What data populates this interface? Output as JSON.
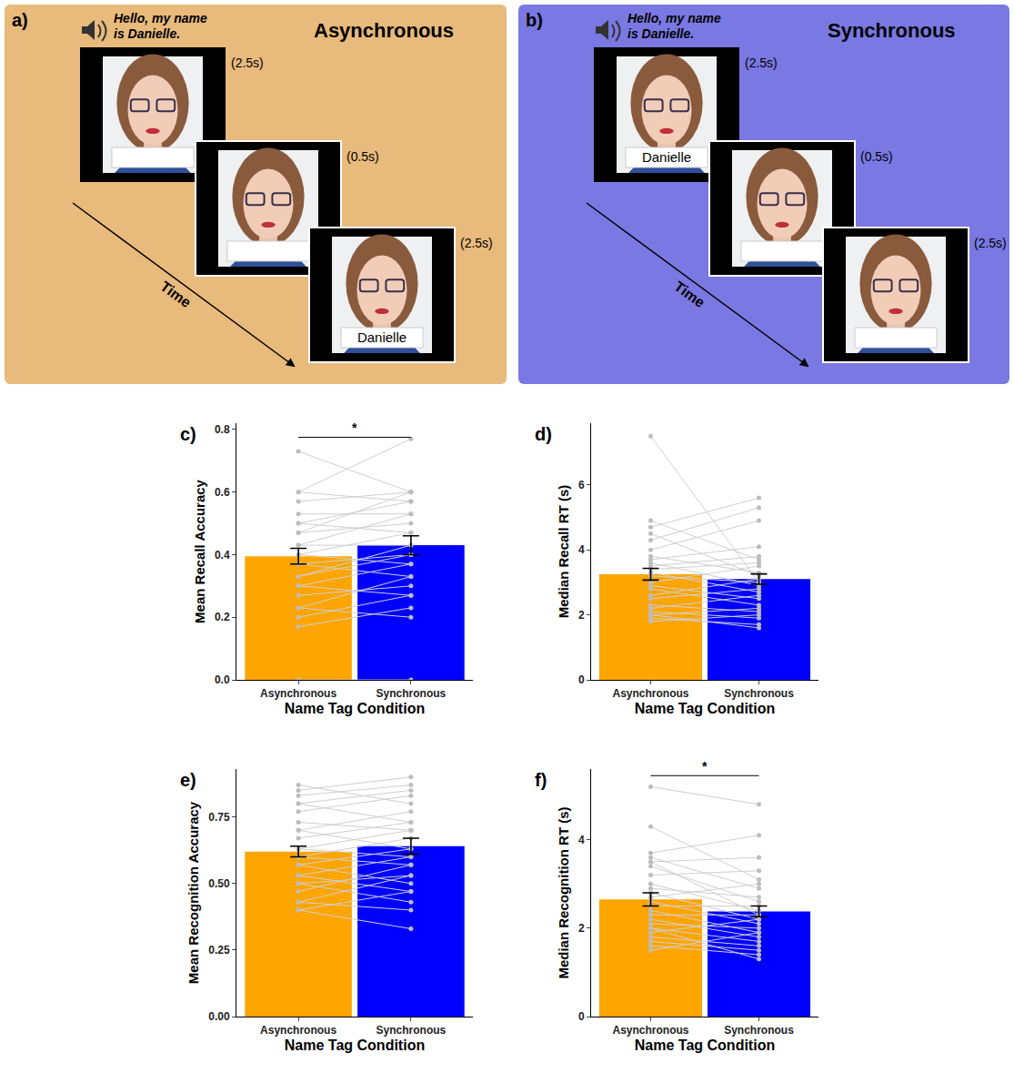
{
  "diagrams": [
    {
      "panel": "a)",
      "title": "Asynchronous",
      "color": "#E8BA7C",
      "speech": "Hello, my name is Danielle.",
      "arrow_label": "Time",
      "frames": [
        {
          "duration": "(2.5s)",
          "name_tag": null
        },
        {
          "duration": "(0.5s)",
          "name_tag": null
        },
        {
          "duration": "(2.5s)",
          "name_tag": "Danielle"
        }
      ]
    },
    {
      "panel": "b)",
      "title": "Synchronous",
      "color": "#7A78E2",
      "speech": "Hello, my name is Danielle.",
      "arrow_label": "Time",
      "frames": [
        {
          "duration": "(2.5s)",
          "name_tag": "Danielle"
        },
        {
          "duration": "(0.5s)",
          "name_tag": null
        },
        {
          "duration": "(2.5s)",
          "name_tag": null
        }
      ]
    }
  ],
  "chart_data": [
    {
      "type": "bar",
      "panel": "c)",
      "categories": [
        "Asynchronous",
        "Synchronous"
      ],
      "colors": [
        "#FFA500",
        "#0000FF"
      ],
      "values": [
        0.395,
        0.43
      ],
      "error": [
        0.025,
        0.03
      ],
      "xlabel": "Name Tag Condition",
      "ylabel": "Mean Recall Accuracy",
      "ylim": [
        0,
        0.82
      ],
      "yticks": [
        {
          "value": 0,
          "label": "0.0"
        },
        {
          "value": 0.2,
          "label": "0.2"
        },
        {
          "value": 0.4,
          "label": "0.4"
        },
        {
          "value": 0.6,
          "label": "0.6"
        },
        {
          "value": 0.8,
          "label": "0.8"
        }
      ],
      "significance": {
        "label": "*",
        "y": 0.775
      },
      "paired": [
        [
          0.73,
          0.6
        ],
        [
          0.6,
          0.77
        ],
        [
          0.6,
          0.57
        ],
        [
          0.57,
          0.6
        ],
        [
          0.53,
          0.53
        ],
        [
          0.5,
          0.57
        ],
        [
          0.5,
          0.47
        ],
        [
          0.47,
          0.6
        ],
        [
          0.47,
          0.5
        ],
        [
          0.43,
          0.43
        ],
        [
          0.43,
          0.53
        ],
        [
          0.4,
          0.37
        ],
        [
          0.4,
          0.47
        ],
        [
          0.37,
          0.4
        ],
        [
          0.37,
          0.33
        ],
        [
          0.33,
          0.43
        ],
        [
          0.33,
          0.4
        ],
        [
          0.3,
          0.37
        ],
        [
          0.3,
          0.27
        ],
        [
          0.27,
          0.3
        ],
        [
          0.23,
          0.33
        ],
        [
          0.23,
          0.2
        ],
        [
          0.2,
          0.27
        ],
        [
          0.17,
          0.23
        ],
        [
          0.0,
          0.0
        ]
      ]
    },
    {
      "type": "bar",
      "panel": "d)",
      "categories": [
        "Asynchronous",
        "Synchronous"
      ],
      "colors": [
        "#FFA500",
        "#0000FF"
      ],
      "values": [
        3.25,
        3.1
      ],
      "error": [
        0.18,
        0.16
      ],
      "xlabel": "Name Tag Condition",
      "ylabel": "Median Recall RT (s)",
      "ylim": [
        0,
        7.9
      ],
      "yticks": [
        0,
        2,
        4,
        6
      ],
      "paired": [
        [
          7.5,
          3.0
        ],
        [
          4.9,
          3.7
        ],
        [
          4.7,
          5.6
        ],
        [
          4.5,
          3.2
        ],
        [
          4.3,
          5.3
        ],
        [
          4.0,
          4.9
        ],
        [
          3.8,
          3.3
        ],
        [
          3.7,
          4.1
        ],
        [
          3.6,
          2.9
        ],
        [
          3.5,
          3.8
        ],
        [
          3.4,
          3.6
        ],
        [
          3.3,
          2.7
        ],
        [
          3.2,
          3.0
        ],
        [
          3.0,
          3.5
        ],
        [
          2.9,
          2.5
        ],
        [
          2.8,
          2.3
        ],
        [
          2.6,
          3.1
        ],
        [
          2.5,
          2.8
        ],
        [
          2.3,
          2.1
        ],
        [
          2.2,
          2.6
        ],
        [
          2.1,
          1.9
        ],
        [
          2.0,
          2.2
        ],
        [
          1.9,
          1.7
        ],
        [
          1.8,
          2.0
        ],
        [
          2.0,
          1.6
        ]
      ]
    },
    {
      "type": "bar",
      "panel": "e)",
      "categories": [
        "Asynchronous",
        "Synchronous"
      ],
      "colors": [
        "#FFA500",
        "#0000FF"
      ],
      "values": [
        0.62,
        0.64
      ],
      "error": [
        0.02,
        0.03
      ],
      "xlabel": "Name Tag Condition",
      "ylabel": "Mean Recognition Accuracy",
      "ylim": [
        0,
        0.93
      ],
      "yticks": [
        {
          "value": 0,
          "label": "0.00"
        },
        {
          "value": 0.25,
          "label": "0.25"
        },
        {
          "value": 0.5,
          "label": "0.50"
        },
        {
          "value": 0.75,
          "label": "0.75"
        }
      ],
      "paired": [
        [
          0.87,
          0.8
        ],
        [
          0.85,
          0.9
        ],
        [
          0.83,
          0.87
        ],
        [
          0.8,
          0.85
        ],
        [
          0.8,
          0.73
        ],
        [
          0.77,
          0.83
        ],
        [
          0.73,
          0.7
        ],
        [
          0.7,
          0.77
        ],
        [
          0.7,
          0.63
        ],
        [
          0.67,
          0.73
        ],
        [
          0.63,
          0.6
        ],
        [
          0.63,
          0.7
        ],
        [
          0.6,
          0.57
        ],
        [
          0.6,
          0.67
        ],
        [
          0.57,
          0.63
        ],
        [
          0.57,
          0.5
        ],
        [
          0.53,
          0.6
        ],
        [
          0.53,
          0.47
        ],
        [
          0.5,
          0.53
        ],
        [
          0.5,
          0.43
        ],
        [
          0.47,
          0.57
        ],
        [
          0.43,
          0.4
        ],
        [
          0.43,
          0.53
        ],
        [
          0.4,
          0.33
        ],
        [
          0.4,
          0.47
        ]
      ]
    },
    {
      "type": "bar",
      "panel": "f)",
      "categories": [
        "Asynchronous",
        "Synchronous"
      ],
      "colors": [
        "#FFA500",
        "#0000FF"
      ],
      "values": [
        2.65,
        2.38
      ],
      "error": [
        0.15,
        0.12
      ],
      "xlabel": "Name Tag Condition",
      "ylabel": "Median Recognition RT (s)",
      "ylim": [
        0,
        5.6
      ],
      "yticks": [
        0,
        2,
        4
      ],
      "significance": {
        "label": "*",
        "y": 5.45
      },
      "paired": [
        [
          5.2,
          4.8
        ],
        [
          4.3,
          3.1
        ],
        [
          3.7,
          4.1
        ],
        [
          3.6,
          2.9
        ],
        [
          3.5,
          3.6
        ],
        [
          3.4,
          2.6
        ],
        [
          3.2,
          3.3
        ],
        [
          3.0,
          2.4
        ],
        [
          2.9,
          2.7
        ],
        [
          2.8,
          2.2
        ],
        [
          2.7,
          3.0
        ],
        [
          2.6,
          2.1
        ],
        [
          2.5,
          2.5
        ],
        [
          2.4,
          1.9
        ],
        [
          2.3,
          2.3
        ],
        [
          2.2,
          1.8
        ],
        [
          2.1,
          2.0
        ],
        [
          2.0,
          1.7
        ],
        [
          1.9,
          2.2
        ],
        [
          1.8,
          1.6
        ],
        [
          1.7,
          1.5
        ],
        [
          1.6,
          1.4
        ],
        [
          2.0,
          1.3
        ],
        [
          1.5,
          1.9
        ],
        [
          3.5,
          2.3
        ]
      ]
    }
  ]
}
